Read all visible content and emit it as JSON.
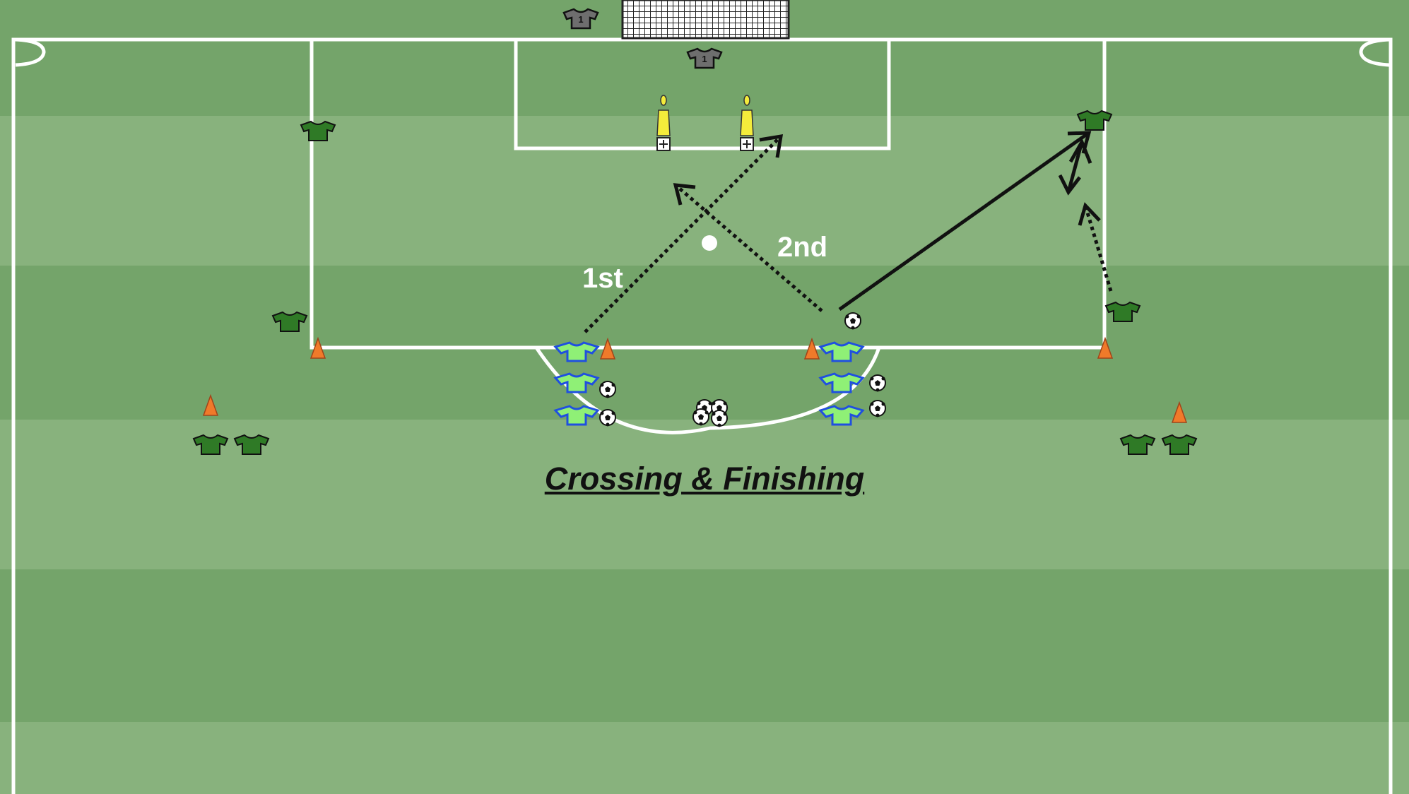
{
  "diagram": {
    "title": "Crossing & Finishing",
    "labels": {
      "first": "1st",
      "second": "2nd"
    },
    "goalkeeper_number": "1"
  },
  "colors": {
    "stripe_dark": "#74a46a",
    "stripe_light": "#88b27d",
    "lines": "#ffffff",
    "home_shirt": "#2f7a26",
    "away_shirt": "#8ff076",
    "away_outline": "#1f4fe0",
    "goalkeeper_shirt": "#6e6e6e",
    "cone": "#f07a2a",
    "mannequin": "#f4ec3b",
    "arrow": "#111111"
  },
  "icons": {
    "shirt": "shirt-icon",
    "cone": "cone-icon",
    "ball": "soccer-ball-icon",
    "mannequin": "mannequin-icon",
    "goal": "goal-net-icon"
  }
}
